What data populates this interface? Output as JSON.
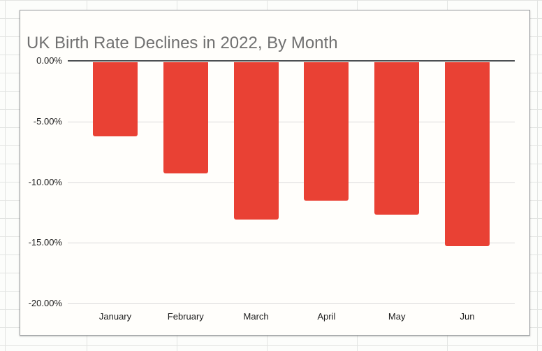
{
  "chart_data": {
    "type": "bar",
    "title": "UK Birth Rate Declines in 2022, By Month",
    "categories": [
      "January",
      "February",
      "March",
      "April",
      "May",
      "Jun"
    ],
    "values": [
      -6.2,
      -9.3,
      -13.1,
      -11.5,
      -12.7,
      -15.3
    ],
    "series_name": "",
    "xlabel": "",
    "ylabel": "",
    "ylim": [
      -20,
      0
    ],
    "y_ticks": [
      {
        "label": "0.00%",
        "value": 0
      },
      {
        "label": "-5.00%",
        "value": -5
      },
      {
        "label": "-10.00%",
        "value": -10
      },
      {
        "label": "-15.00%",
        "value": -15
      },
      {
        "label": "-20.00%",
        "value": -20
      }
    ],
    "grid": true,
    "legend_position": "none",
    "value_format": "percent"
  },
  "colors": {
    "bar": "#e94134",
    "title_text": "#717171",
    "axis_text": "#1b1b1b",
    "zero_line": "#4c4f52",
    "gridline": "#d9d9d9"
  }
}
